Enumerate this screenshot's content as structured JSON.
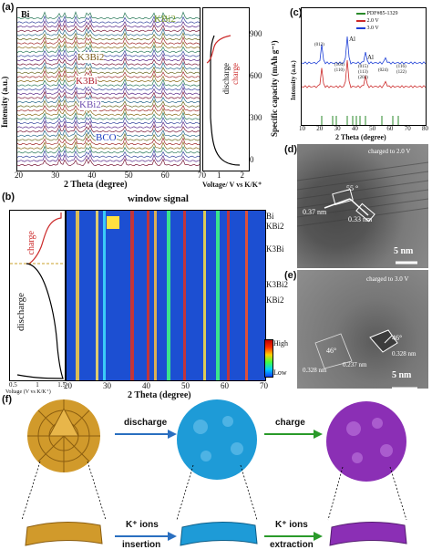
{
  "panel_labels": {
    "a": "(a)",
    "b": "(b)",
    "c": "(c)",
    "d": "(d)",
    "e": "(e)",
    "f": "(f)"
  },
  "panel_a": {
    "phase_labels": [
      "Bi",
      "KBi2",
      "K3Bi2",
      "K3Bi",
      "KBi2",
      "BCO"
    ],
    "xlabel": "2 Theta (degree)",
    "ylabel": "Intensity (a.u.)",
    "xticks": [
      "20",
      "30",
      "40",
      "50",
      "60",
      "70"
    ],
    "side_ylabel": "Specific capacity (mAh g⁻¹)",
    "side_yticks": [
      "900",
      "600",
      "300",
      "0"
    ],
    "side_xlabel": "Voltage/ V vs K/K⁺",
    "side_xticks": [
      "1",
      "2"
    ],
    "legend": [
      "discharge",
      "charge"
    ]
  },
  "panel_b": {
    "title": "window signal",
    "xlabel": "2 Theta (degree)",
    "xticks": [
      "20",
      "30",
      "40",
      "50",
      "60",
      "70"
    ],
    "side_xlabel": "Voltage (V vs K/K⁺)",
    "side_xticks": [
      "0.5",
      "1",
      "1.5"
    ],
    "charge": "charge",
    "discharge": "discharge",
    "phase_labels": [
      "Bi",
      "KBi2",
      "K3Bi",
      "K3Bi2",
      "KBi2"
    ],
    "colorbar": [
      "High",
      "Low"
    ]
  },
  "panel_c": {
    "legend": [
      "PDF#85-1329",
      "2.0 V",
      "3.0 V"
    ],
    "xlabel": "2 Theta (degree)",
    "ylabel": "Intensity (a.u.)",
    "xticks": [
      "10",
      "20",
      "30",
      "40",
      "50",
      "60",
      "70",
      "80"
    ],
    "peak_labels": [
      "(012)",
      "(104)",
      "(110)",
      "Al",
      "(015)",
      "(113)",
      "(202)",
      "(024)",
      "(116)",
      "(122)",
      "Al"
    ]
  },
  "panel_d": {
    "label": "charged to 2.0 V",
    "d1": "0.37 nm",
    "d2": "0.33 nm",
    "angle": "55 °",
    "scale": "5 nm"
  },
  "panel_e": {
    "label": "charged to 3.0 V",
    "d1": "0.328 nm",
    "d2": "0.237 nm",
    "d3": "0.328 nm",
    "a1": "46°",
    "a2": "46°",
    "scale": "5 nm"
  },
  "panel_f": {
    "step1": "discharge",
    "step2": "charge",
    "ions1_a": "K⁺ ions",
    "ions1_b": "insertion",
    "ions2_a": "K⁺ ions",
    "ions2_b": "extraction"
  },
  "colors": {
    "gold": "#d19a2b",
    "blue": "#1e9bd7",
    "purple": "#8b2fb5",
    "red": "#cc2a2a"
  }
}
